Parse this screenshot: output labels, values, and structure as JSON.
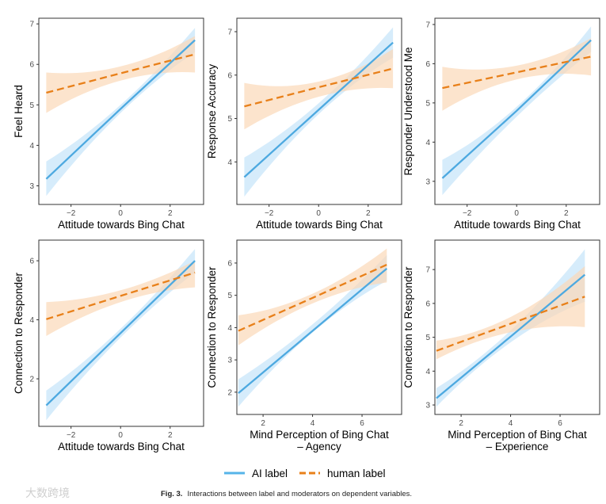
{
  "colors": {
    "ai": "#56B4E9",
    "human": "#E69F00",
    "ai_line": "#4DA9E0",
    "human_line": "#E8801A",
    "ai_band": "#CFE9FA",
    "human_band": "#FBD9B8"
  },
  "legend": {
    "ai_label": "AI label",
    "human_label": "human label"
  },
  "caption": {
    "prefix": "Fig. 3.",
    "text": "Interactions between label and moderators on dependent variables."
  },
  "watermark": "大数跨境",
  "chart_data": [
    {
      "type": "line",
      "ylabel": "Feel Heard",
      "xlabel": [
        "Attitude towards Bing Chat"
      ],
      "xlim": [
        -3.3,
        3.35
      ],
      "ylim": [
        2.54,
        7.14
      ],
      "xticks": [
        -2,
        0,
        2
      ],
      "yticks": [
        3,
        4,
        5,
        6,
        7
      ],
      "x": [
        -3,
        0,
        3
      ],
      "series": [
        {
          "name": "AI label",
          "values": [
            3.17,
            4.9,
            6.6
          ],
          "lower": [
            2.75,
            4.8,
            6.3
          ],
          "upper": [
            3.6,
            5.0,
            6.9
          ]
        },
        {
          "name": "human label",
          "values": [
            5.3,
            5.78,
            6.25
          ],
          "lower": [
            4.8,
            5.6,
            5.8
          ],
          "upper": [
            5.8,
            5.95,
            6.7
          ]
        }
      ]
    },
    {
      "type": "line",
      "ylabel": "Response Accuracy",
      "xlabel": [
        "Attitude towards Bing Chat"
      ],
      "xlim": [
        -3.3,
        3.35
      ],
      "ylim": [
        3.02,
        7.31
      ],
      "xticks": [
        -2,
        0,
        2
      ],
      "yticks": [
        4,
        5,
        6,
        7
      ],
      "x": [
        -3,
        0,
        3
      ],
      "series": [
        {
          "name": "AI label",
          "values": [
            3.65,
            5.2,
            6.75
          ],
          "lower": [
            3.2,
            5.1,
            6.4
          ],
          "upper": [
            4.1,
            5.35,
            7.1
          ]
        },
        {
          "name": "human label",
          "values": [
            5.28,
            5.72,
            6.15
          ],
          "lower": [
            4.75,
            5.5,
            5.7
          ],
          "upper": [
            5.82,
            5.85,
            6.6
          ]
        }
      ]
    },
    {
      "type": "line",
      "ylabel": "Responder Understood Me",
      "xlabel": [
        "Attitude towards Bing Chat"
      ],
      "xlim": [
        -3.3,
        3.35
      ],
      "ylim": [
        2.41,
        7.16
      ],
      "xticks": [
        -2,
        0,
        2
      ],
      "yticks": [
        3,
        4,
        5,
        6,
        7
      ],
      "x": [
        -3,
        0,
        3
      ],
      "series": [
        {
          "name": "AI label",
          "values": [
            3.08,
            4.8,
            6.6
          ],
          "lower": [
            2.65,
            4.65,
            6.3
          ],
          "upper": [
            3.55,
            4.9,
            6.95
          ]
        },
        {
          "name": "human label",
          "values": [
            5.38,
            5.78,
            6.18
          ],
          "lower": [
            4.8,
            5.6,
            5.7
          ],
          "upper": [
            5.92,
            5.95,
            6.65
          ]
        }
      ]
    },
    {
      "type": "line",
      "ylabel": "Connection to Responder",
      "xlabel": [
        "Attitude towards Bing Chat"
      ],
      "xlim": [
        -3.3,
        3.35
      ],
      "ylim": [
        0.39,
        6.7
      ],
      "xticks": [
        -2,
        0,
        2
      ],
      "yticks": [
        2,
        4,
        6
      ],
      "x": [
        -3,
        0,
        3
      ],
      "series": [
        {
          "name": "AI label",
          "values": [
            1.1,
            3.55,
            6.0
          ],
          "lower": [
            0.6,
            3.4,
            5.6
          ],
          "upper": [
            1.6,
            3.7,
            6.4
          ]
        },
        {
          "name": "human label",
          "values": [
            4.02,
            4.81,
            5.6
          ],
          "lower": [
            3.45,
            4.6,
            5.1
          ],
          "upper": [
            4.6,
            5.0,
            6.0
          ]
        }
      ]
    },
    {
      "type": "line",
      "ylabel": "Connection to Responder",
      "xlabel": [
        "Mind Perception of Bing Chat",
        "– Agency"
      ],
      "xlim": [
        0.94,
        7.6
      ],
      "ylim": [
        1.31,
        6.71
      ],
      "xticks": [
        2,
        4,
        6
      ],
      "yticks": [
        2,
        3,
        4,
        5,
        6
      ],
      "x": [
        1,
        4,
        7
      ],
      "series": [
        {
          "name": "AI label",
          "values": [
            1.97,
            3.9,
            5.83
          ],
          "lower": [
            1.55,
            3.85,
            5.45
          ],
          "upper": [
            2.4,
            4.1,
            6.25
          ]
        },
        {
          "name": "human label",
          "values": [
            3.9,
            4.92,
            5.95
          ],
          "lower": [
            3.45,
            4.75,
            5.4
          ],
          "upper": [
            4.38,
            5.05,
            6.45
          ]
        }
      ]
    },
    {
      "type": "line",
      "ylabel": "Connection to Responder",
      "xlabel": [
        "Mind Perception of Bing Chat",
        "– Experience"
      ],
      "xlim": [
        0.94,
        7.6
      ],
      "ylim": [
        2.72,
        7.87
      ],
      "xticks": [
        2,
        4,
        6
      ],
      "yticks": [
        3,
        4,
        5,
        6,
        7
      ],
      "x": [
        1,
        4,
        7
      ],
      "series": [
        {
          "name": "AI label",
          "values": [
            3.2,
            5.02,
            6.85
          ],
          "lower": [
            2.95,
            4.85,
            6.05
          ],
          "upper": [
            3.5,
            5.2,
            7.6
          ]
        },
        {
          "name": "human label",
          "values": [
            4.6,
            5.4,
            6.2
          ],
          "lower": [
            4.35,
            5.15,
            5.3
          ],
          "upper": [
            4.9,
            5.6,
            7.1
          ]
        }
      ]
    }
  ]
}
